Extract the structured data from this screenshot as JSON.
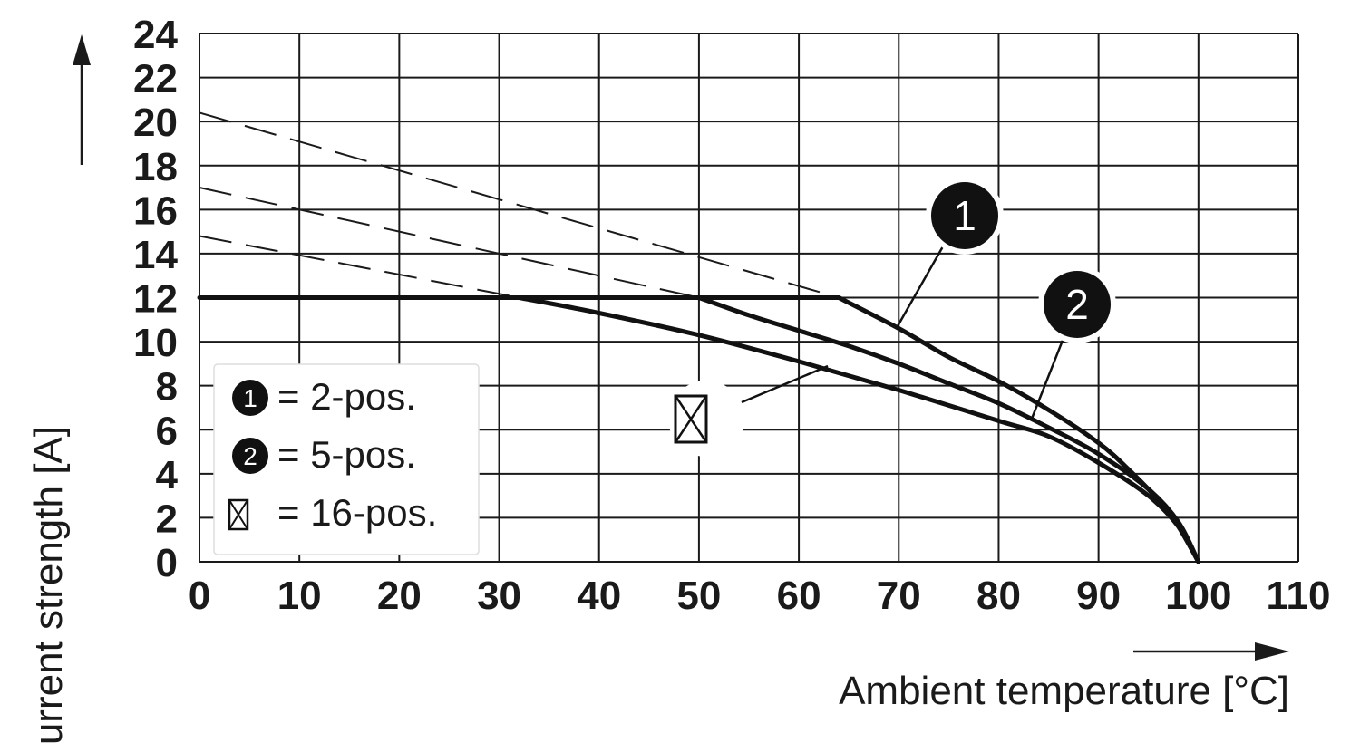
{
  "chart_data": {
    "type": "line",
    "xlabel": "Ambient temperature [°C]",
    "ylabel": "Current strength [A]",
    "xlim": [
      0,
      110
    ],
    "ylim": [
      0,
      24
    ],
    "x_ticks": [
      0,
      10,
      20,
      30,
      40,
      50,
      60,
      70,
      80,
      90,
      100,
      110
    ],
    "y_ticks": [
      0,
      2,
      4,
      6,
      8,
      10,
      12,
      14,
      16,
      18,
      20,
      22,
      24
    ],
    "grid": true,
    "limit_line": {
      "x": [
        0,
        64
      ],
      "y": [
        12,
        12
      ]
    },
    "series": [
      {
        "name": "1",
        "x": [
          64,
          70,
          75,
          80,
          85,
          90,
          93,
          96,
          98,
          100
        ],
        "y": [
          12,
          10.6,
          9.3,
          8.2,
          6.9,
          5.4,
          4.2,
          2.8,
          1.6,
          0
        ]
      },
      {
        "name": "2",
        "x": [
          50,
          55,
          60,
          65,
          70,
          75,
          80,
          85,
          90,
          95,
          98,
          100
        ],
        "y": [
          12,
          11.2,
          10.5,
          9.8,
          9.0,
          8.1,
          7.2,
          6.1,
          4.9,
          3.3,
          1.8,
          0
        ]
      },
      {
        "name": "16",
        "x": [
          32,
          40,
          50,
          60,
          70,
          80,
          85,
          90,
          95,
          98,
          100
        ],
        "y": [
          12,
          11.3,
          10.3,
          9.1,
          7.8,
          6.4,
          5.7,
          4.5,
          3.0,
          1.6,
          0
        ]
      }
    ],
    "dashed_extensions": [
      {
        "x": [
          0,
          64
        ],
        "y": [
          20.4,
          12
        ]
      },
      {
        "x": [
          0,
          50
        ],
        "y": [
          17.0,
          12
        ]
      },
      {
        "x": [
          0,
          32
        ],
        "y": [
          14.8,
          12
        ]
      }
    ],
    "legend": {
      "placement": "bottom-left",
      "entries": [
        {
          "marker": "1",
          "label": "= 2-pos."
        },
        {
          "marker": "2",
          "label": "= 5-pos."
        },
        {
          "marker": "⊠",
          "label": "= 16-pos."
        }
      ]
    },
    "callouts": [
      {
        "marker": "1",
        "target_series": "1"
      },
      {
        "marker": "2",
        "target_series": "2"
      },
      {
        "marker": "⊠",
        "target_series": "16"
      }
    ]
  }
}
